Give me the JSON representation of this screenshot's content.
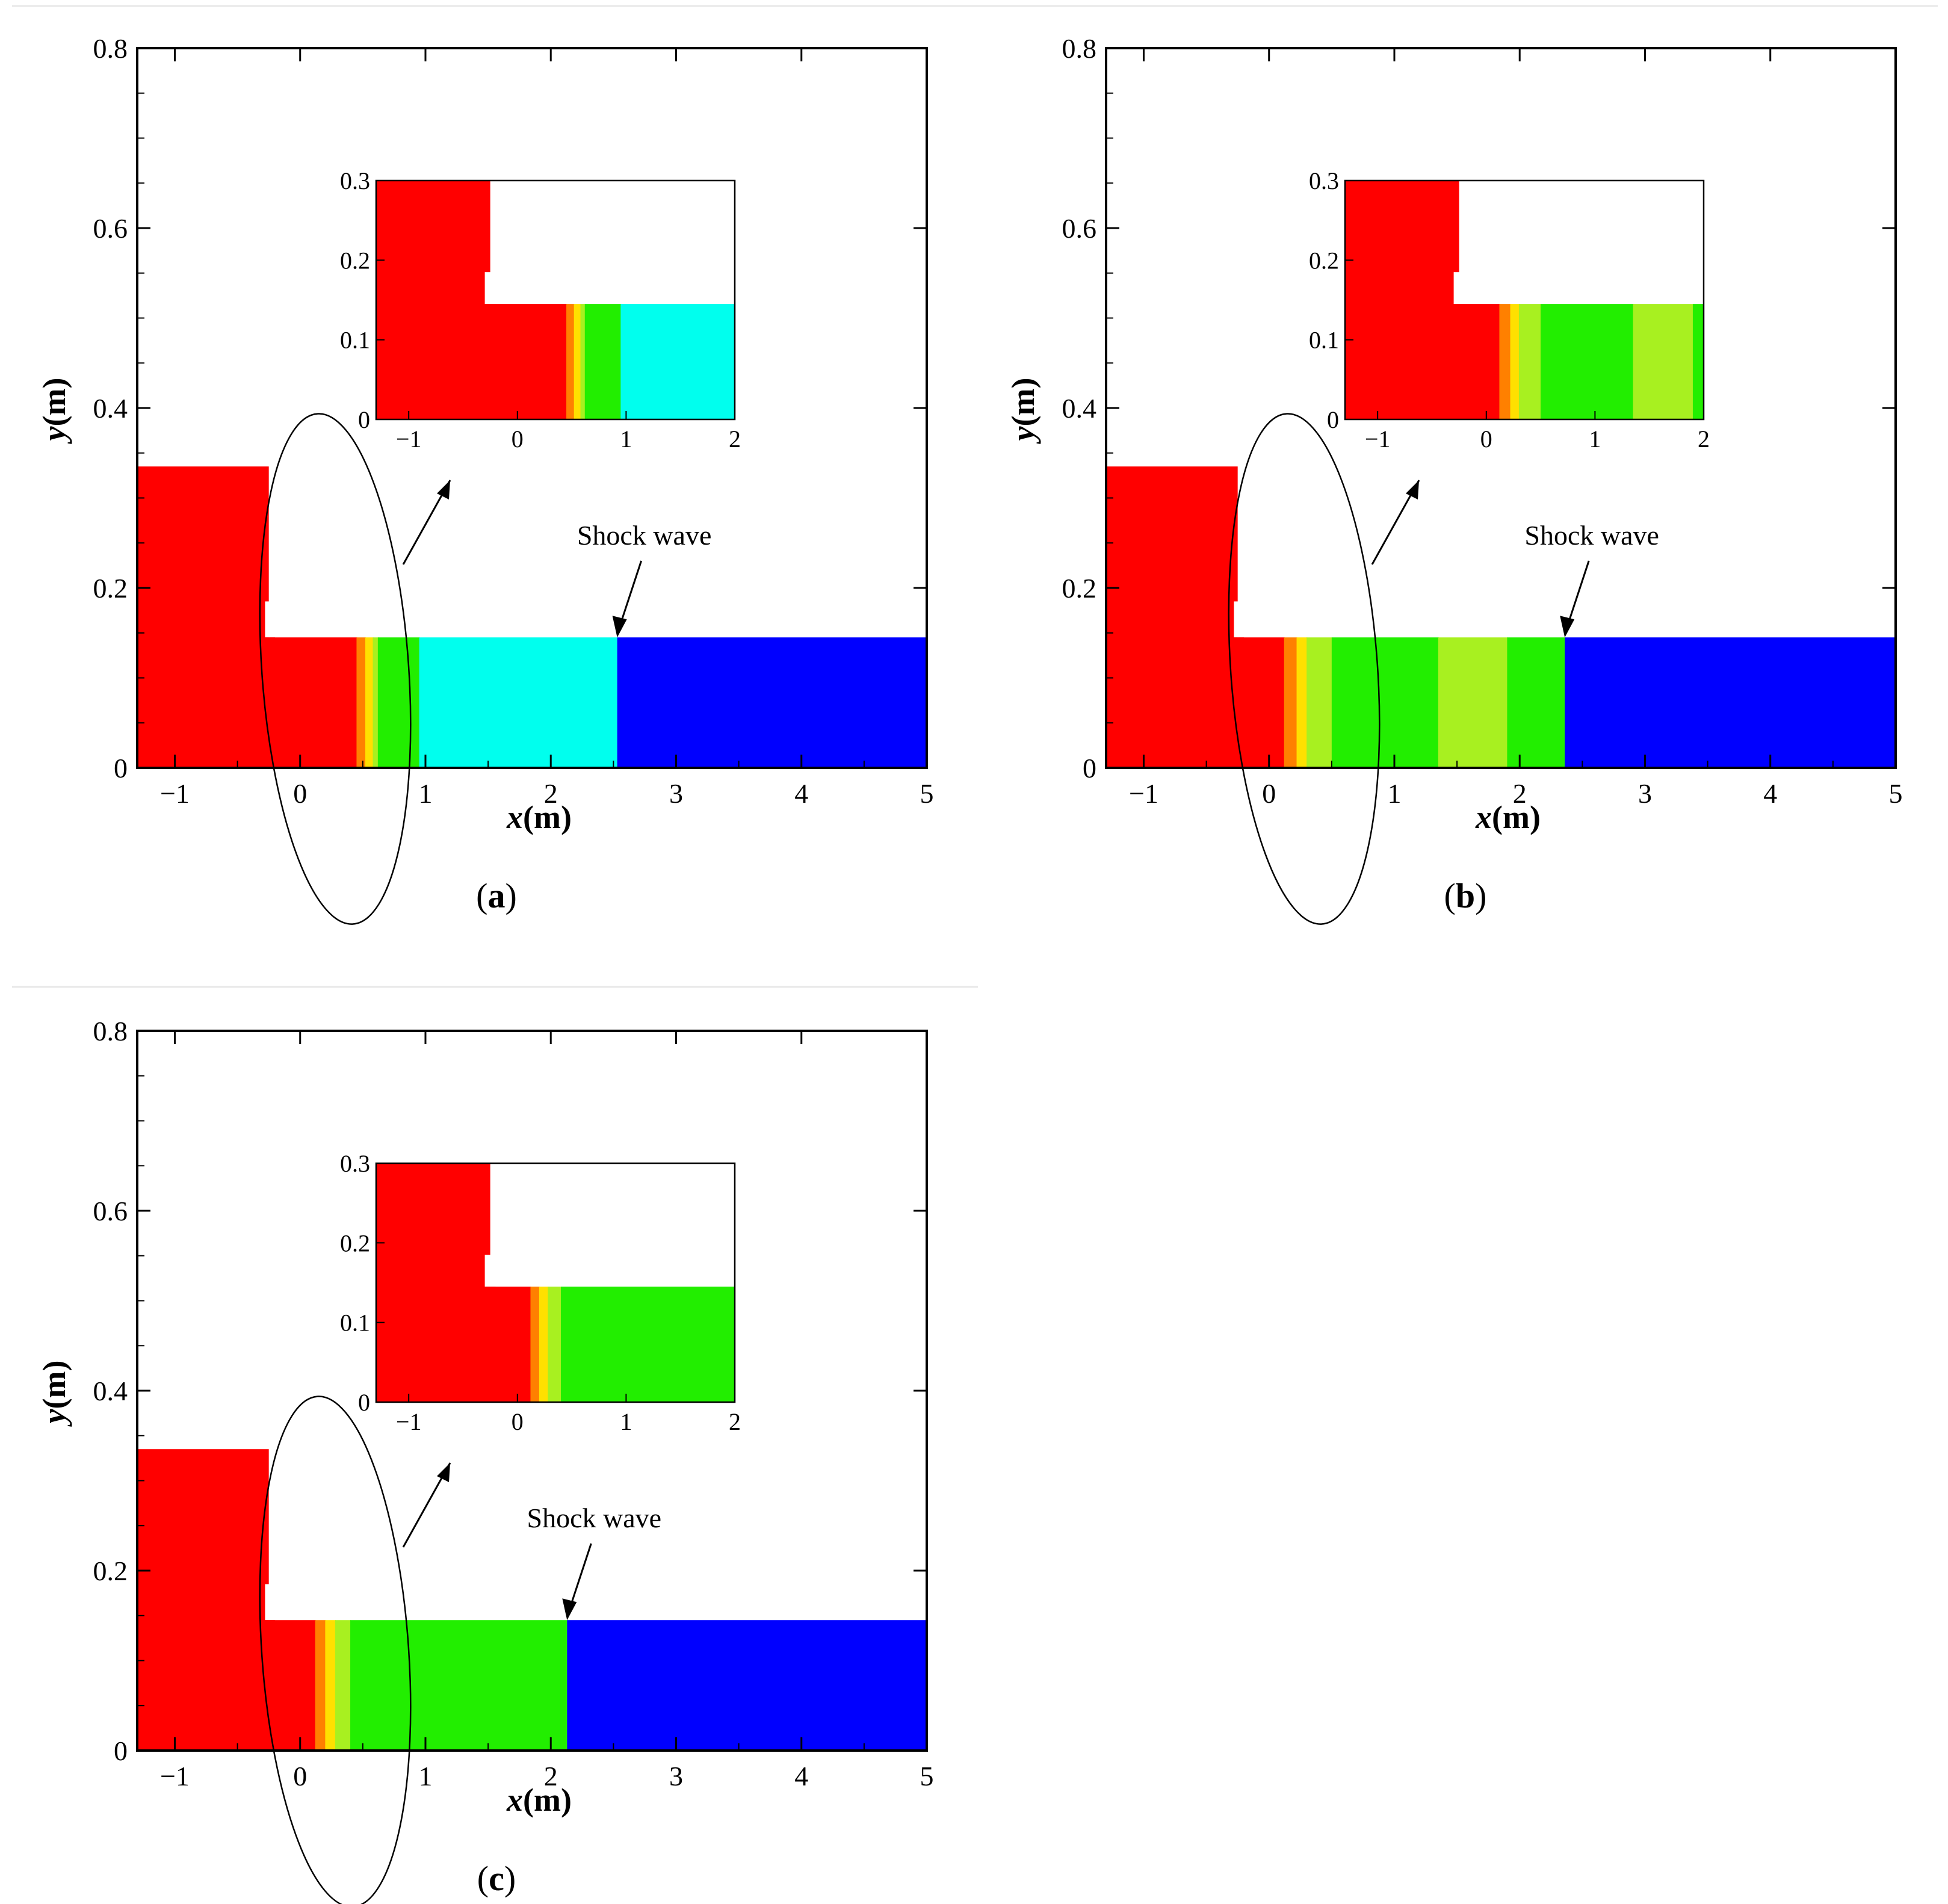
{
  "figure": {
    "colors": {
      "red": "#ff0000",
      "orange": "#ff8000",
      "yellow": "#ffe000",
      "yellow_green": "#a8f020",
      "green": "#22ee00",
      "cyan": "#00ffee",
      "blue": "#0000ff",
      "axis": "#000000",
      "separator": "#e8e8e8"
    }
  },
  "chart_data": [
    {
      "type": "heatmap",
      "panel_label": "a",
      "xlabel": "x",
      "ylabel": "y",
      "unit": "(m)",
      "xlim": [
        -1.3,
        5
      ],
      "ylim": [
        0,
        0.8
      ],
      "xticks": [
        "−1",
        "0",
        "1",
        "2",
        "3",
        "4",
        "5"
      ],
      "yticks": [
        "0",
        "0.2",
        "0.4",
        "0.6",
        "0.8"
      ],
      "annotation": "Shock wave",
      "shock_x": 2.53,
      "wall_height": 0.335,
      "water_depth": 0.145,
      "bands": [
        {
          "x0": -1.3,
          "x1": 0.45,
          "color": "red"
        },
        {
          "x0": 0.45,
          "x1": 0.52,
          "color": "orange"
        },
        {
          "x0": 0.52,
          "x1": 0.58,
          "color": "yellow"
        },
        {
          "x0": 0.58,
          "x1": 0.62,
          "color": "yellow_green"
        },
        {
          "x0": 0.62,
          "x1": 0.95,
          "color": "green"
        },
        {
          "x0": 0.95,
          "x1": 2.53,
          "color": "cyan"
        },
        {
          "x0": 2.53,
          "x1": 5,
          "color": "blue"
        }
      ],
      "inset": {
        "xlim": [
          -1.3,
          2
        ],
        "ylim": [
          0,
          0.3
        ],
        "xticks": [
          "−1",
          "0",
          "1",
          "2"
        ],
        "yticks": [
          "0",
          "0.1",
          "0.2",
          "0.3"
        ]
      }
    },
    {
      "type": "heatmap",
      "panel_label": "b",
      "xlabel": "x",
      "ylabel": "y",
      "unit": "(m)",
      "xlim": [
        -1.3,
        5
      ],
      "ylim": [
        0,
        0.8
      ],
      "xticks": [
        "−1",
        "0",
        "1",
        "2",
        "3",
        "4",
        "5"
      ],
      "yticks": [
        "0",
        "0.2",
        "0.4",
        "0.6",
        "0.8"
      ],
      "annotation": "Shock wave",
      "shock_x": 2.36,
      "wall_height": 0.335,
      "water_depth": 0.145,
      "bands": [
        {
          "x0": -1.3,
          "x1": 0.12,
          "color": "red"
        },
        {
          "x0": 0.12,
          "x1": 0.22,
          "color": "orange"
        },
        {
          "x0": 0.22,
          "x1": 0.3,
          "color": "yellow"
        },
        {
          "x0": 0.3,
          "x1": 0.5,
          "color": "yellow_green"
        },
        {
          "x0": 0.5,
          "x1": 1.35,
          "color": "green"
        },
        {
          "x0": 1.35,
          "x1": 1.9,
          "color": "yellow_green"
        },
        {
          "x0": 1.9,
          "x1": 2.36,
          "color": "green"
        },
        {
          "x0": 2.36,
          "x1": 5,
          "color": "blue"
        }
      ],
      "inset": {
        "xlim": [
          -1.3,
          2
        ],
        "ylim": [
          0,
          0.3
        ],
        "xticks": [
          "−1",
          "0",
          "1",
          "2"
        ],
        "yticks": [
          "0",
          "0.1",
          "0.2",
          "0.3"
        ]
      }
    },
    {
      "type": "heatmap",
      "panel_label": "c",
      "xlabel": "x",
      "ylabel": "y",
      "unit": "(m)",
      "xlim": [
        -1.3,
        5
      ],
      "ylim": [
        0,
        0.8
      ],
      "xticks": [
        "−1",
        "0",
        "1",
        "2",
        "3",
        "4",
        "5"
      ],
      "yticks": [
        "0",
        "0.2",
        "0.4",
        "0.6",
        "0.8"
      ],
      "annotation": "Shock wave",
      "shock_x": 2.13,
      "wall_height": 0.335,
      "water_depth": 0.145,
      "bands": [
        {
          "x0": -1.3,
          "x1": 0.12,
          "color": "red"
        },
        {
          "x0": 0.12,
          "x1": 0.2,
          "color": "orange"
        },
        {
          "x0": 0.2,
          "x1": 0.28,
          "color": "yellow"
        },
        {
          "x0": 0.28,
          "x1": 0.4,
          "color": "yellow_green"
        },
        {
          "x0": 0.4,
          "x1": 2.13,
          "color": "green"
        },
        {
          "x0": 2.13,
          "x1": 5,
          "color": "blue"
        }
      ],
      "inset": {
        "xlim": [
          -1.3,
          2
        ],
        "ylim": [
          0,
          0.3
        ],
        "xticks": [
          "−1",
          "0",
          "1",
          "2"
        ],
        "yticks": [
          "0",
          "0.1",
          "0.2",
          "0.3"
        ]
      }
    }
  ]
}
